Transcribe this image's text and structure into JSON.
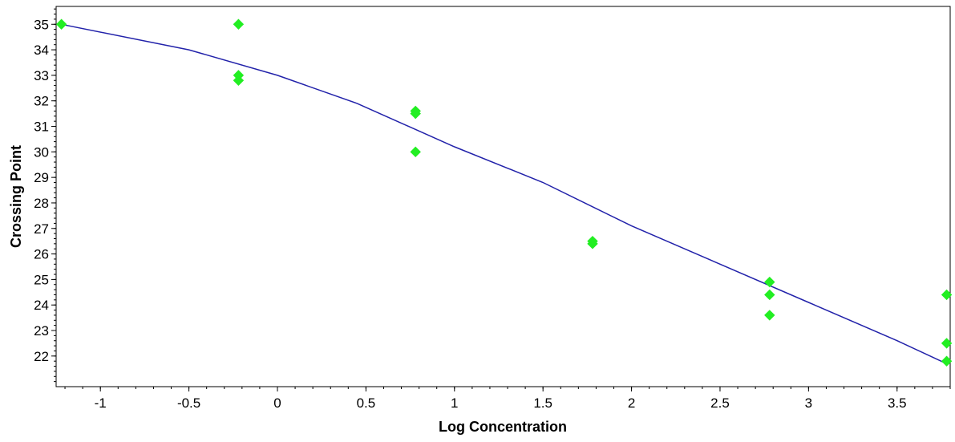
{
  "chart_data": {
    "type": "scatter",
    "title": "",
    "xlabel": "Log Concentration",
    "ylabel": "Crossing Point",
    "xlim": [
      -1.25,
      3.8
    ],
    "ylim": [
      20.8,
      35.7
    ],
    "x_ticks": [
      -1,
      -0.5,
      0,
      0.5,
      1,
      1.5,
      2,
      2.5,
      3,
      3.5
    ],
    "x_tick_labels": [
      "-1",
      "-0.5",
      "0",
      "0.5",
      "1",
      "1.5",
      "2",
      "2.5",
      "3",
      "3.5"
    ],
    "y_ticks": [
      22,
      23,
      24,
      25,
      26,
      27,
      28,
      29,
      30,
      31,
      32,
      33,
      34,
      35
    ],
    "y_tick_labels": [
      "22",
      "23",
      "24",
      "25",
      "26",
      "27",
      "28",
      "29",
      "30",
      "31",
      "32",
      "33",
      "34",
      "35"
    ],
    "grid": false,
    "legend": "none",
    "series": [
      {
        "type": "scatter",
        "color": "#22ee22",
        "x": [
          -1.22,
          -0.22,
          -0.22,
          -0.22,
          0.78,
          0.78,
          0.78,
          1.78,
          1.78,
          2.78,
          2.78,
          2.78,
          3.78,
          3.78,
          3.78
        ],
        "y": [
          35.0,
          35.0,
          33.0,
          32.8,
          31.6,
          31.5,
          30.0,
          26.5,
          26.4,
          24.9,
          24.4,
          23.6,
          24.4,
          22.5,
          21.8
        ]
      },
      {
        "type": "line",
        "color": "#2222aa",
        "x": [
          -1.22,
          -0.5,
          0,
          0.45,
          1.0,
          1.5,
          2.0,
          2.5,
          3.0,
          3.5,
          3.78
        ],
        "y": [
          35.0,
          34.0,
          33.0,
          31.9,
          30.2,
          28.8,
          27.1,
          25.6,
          24.1,
          22.6,
          21.7
        ]
      }
    ]
  }
}
